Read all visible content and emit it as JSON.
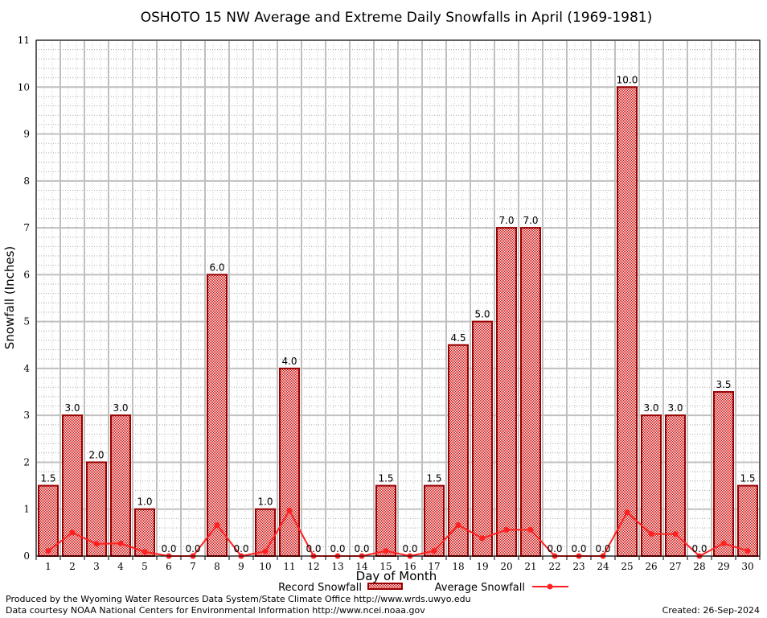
{
  "chart_data": {
    "type": "bar",
    "title": "OSHOTO 15 NW Average and Extreme Daily Snowfalls in April (1969-1981)",
    "xlabel": "Day of Month",
    "ylabel": "Snowfall (Inches)",
    "ylim": [
      0,
      11
    ],
    "yticks": [
      0,
      1,
      2,
      3,
      4,
      5,
      6,
      7,
      8,
      9,
      10,
      11
    ],
    "grid": true,
    "legend_placement": "bottom",
    "categories": [
      "1",
      "2",
      "3",
      "4",
      "5",
      "6",
      "7",
      "8",
      "9",
      "10",
      "11",
      "12",
      "13",
      "14",
      "15",
      "16",
      "17",
      "18",
      "19",
      "20",
      "21",
      "22",
      "23",
      "24",
      "25",
      "26",
      "27",
      "28",
      "29",
      "30"
    ],
    "series": [
      {
        "name": "Record Snowfall",
        "type": "bar",
        "color": "#cc0000",
        "values": [
          1.5,
          3.0,
          2.0,
          3.0,
          1.0,
          0.0,
          0.0,
          6.0,
          0.0,
          1.0,
          4.0,
          0.0,
          0.0,
          0.0,
          1.5,
          0.0,
          1.5,
          4.5,
          5.0,
          7.0,
          7.0,
          0.0,
          0.0,
          0.0,
          10.0,
          3.0,
          3.0,
          0.0,
          3.5,
          1.5
        ],
        "labels": [
          "1.5",
          "3.0",
          "2.0",
          "3.0",
          "1.0",
          "0.0",
          "0.0",
          "6.0",
          "0.0",
          "1.0",
          "4.0",
          "0.0",
          "0.0",
          "0.0",
          "1.5",
          "0.0",
          "1.5",
          "4.5",
          "5.0",
          "7.0",
          "7.0",
          "0.0",
          "0.0",
          "0.0",
          "10.0",
          "3.0",
          "3.0",
          "0.0",
          "3.5",
          "1.5"
        ]
      },
      {
        "name": "Average Snowfall",
        "type": "line",
        "color": "#ff2020",
        "values": [
          0.11,
          0.5,
          0.26,
          0.27,
          0.09,
          0.0,
          0.0,
          0.66,
          0.0,
          0.1,
          0.97,
          0.0,
          0.0,
          0.0,
          0.11,
          0.0,
          0.11,
          0.66,
          0.38,
          0.56,
          0.56,
          0.0,
          0.0,
          0.0,
          0.93,
          0.47,
          0.47,
          0.0,
          0.27,
          0.11
        ]
      }
    ]
  },
  "footer": {
    "produced_by": "Produced by the Wyoming Water Resources Data System/State Climate Office http://www.wrds.uwyo.edu",
    "courtesy": "Data courtesy NOAA National Centers for Environmental Information http://www.ncei.noaa.gov",
    "created": "Created:  26-Sep-2024"
  }
}
